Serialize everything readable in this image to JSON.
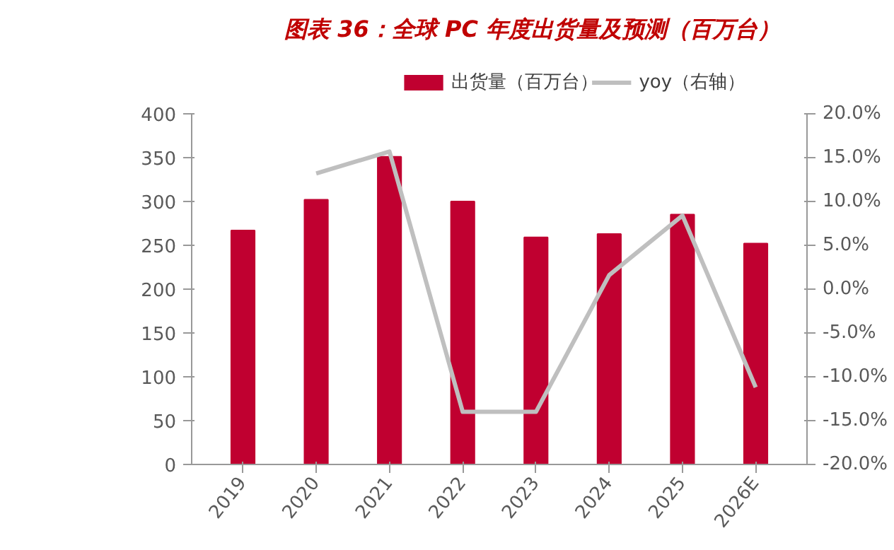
{
  "chart_data": {
    "type": "bar",
    "title": "图表 36：全球 PC 年度出货量及预测（百万台）",
    "categories": [
      "2019",
      "2020",
      "2021",
      "2022",
      "2023",
      "2024",
      "2025",
      "2026E"
    ],
    "series": [
      {
        "name": "出货量（百万台）",
        "color": "#c00030",
        "values": [
          267,
          302,
          351,
          300,
          259,
          263,
          285,
          252
        ]
      },
      {
        "name": "yoy（右轴）",
        "type": "line",
        "axis": "y2",
        "color": "#bfbfbf",
        "values": [
          null,
          13.2,
          15.7,
          -14.0,
          -14.0,
          1.6,
          8.4,
          -11.2
        ]
      }
    ],
    "ylim": [
      0,
      400
    ],
    "yticks": [
      0,
      50,
      100,
      150,
      200,
      250,
      300,
      350,
      400
    ],
    "y2lim": [
      -20,
      20
    ],
    "y2ticks": [
      {
        "value": -20,
        "label": "-20.0%"
      },
      {
        "value": -15,
        "label": "-15.0%"
      },
      {
        "value": -10,
        "label": "-10.0%"
      },
      {
        "value": -5,
        "label": "-5.0%"
      },
      {
        "value": 0,
        "label": "0.0%"
      },
      {
        "value": 5,
        "label": "5.0%"
      },
      {
        "value": 10,
        "label": "10.0%"
      },
      {
        "value": 15,
        "label": "15.0%"
      },
      {
        "value": 20,
        "label": "20.0%"
      }
    ],
    "grid": false,
    "legend": "top"
  }
}
